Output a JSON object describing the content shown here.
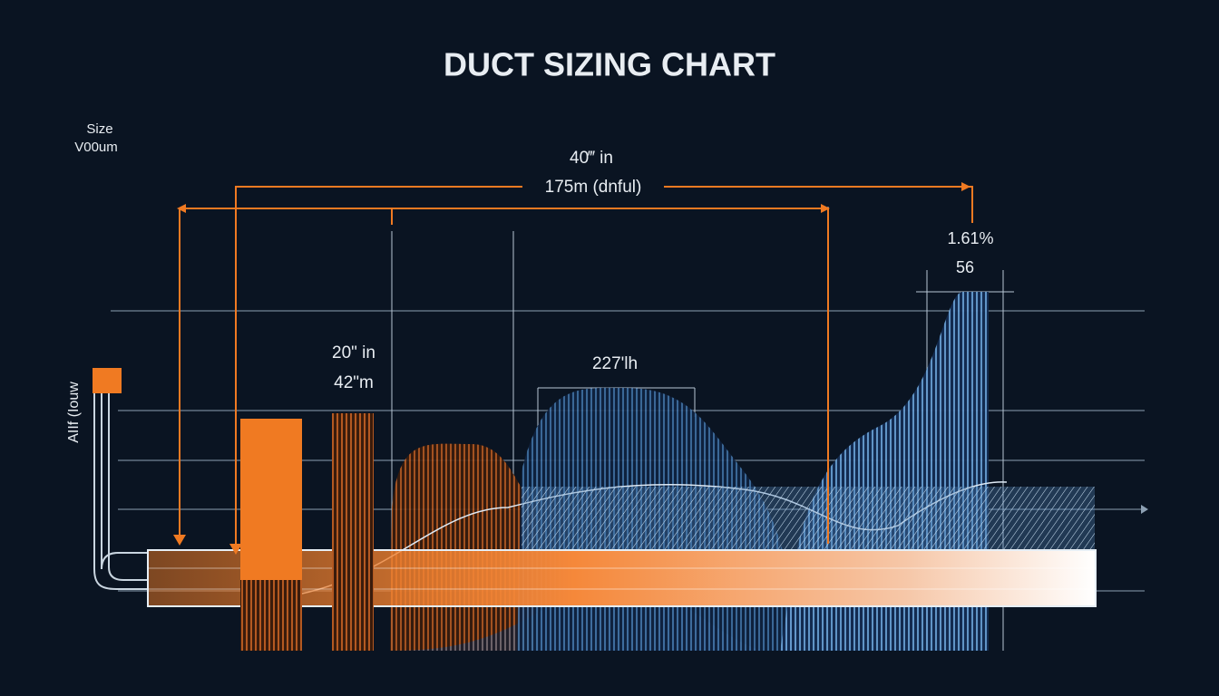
{
  "title": "DUCT SIZING CHART",
  "corner_label": [
    "Size",
    "V00um"
  ],
  "side_label": "AIIf (Iouw",
  "annotations": {
    "top": [
      "40‴ in",
      "175m (dnful)"
    ],
    "right": [
      "1.61%",
      "56"
    ],
    "left": [
      "20\" in",
      "42\"m"
    ],
    "middle": "227'lh"
  }
}
